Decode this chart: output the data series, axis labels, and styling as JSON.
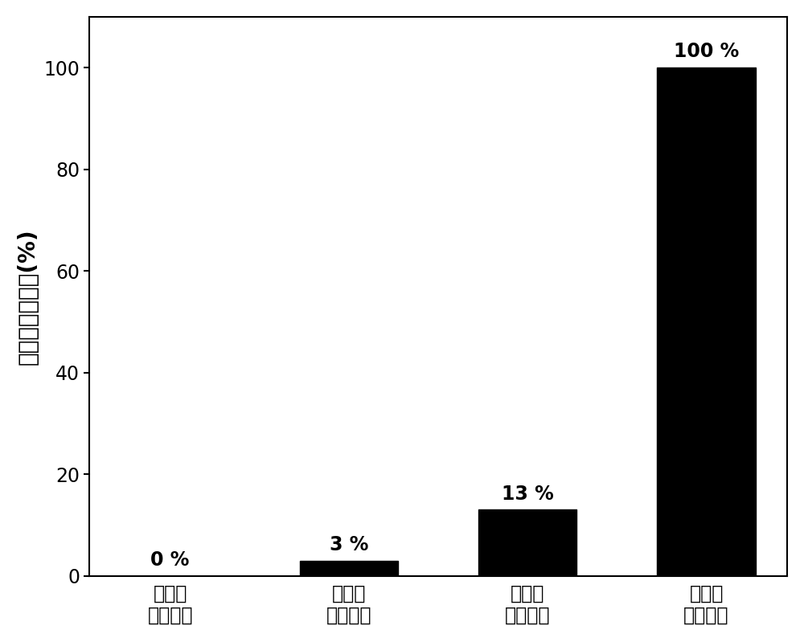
{
  "categories": [
    "无光照\n无抗菌剂",
    "有光照\n无抗菌剂",
    "无光照\n加抗菌剂",
    "有光照\n加抗菌剂"
  ],
  "values": [
    0,
    3,
    13,
    100
  ],
  "bar_color": "#000000",
  "bar_labels": [
    "0 %",
    "3 %",
    "13 %",
    "100 %"
  ],
  "ylabel": "大肠杆菌失活率(%)",
  "ylim": [
    0,
    110
  ],
  "yticks": [
    0,
    20,
    40,
    60,
    80,
    100
  ],
  "label_fontsize": 20,
  "tick_fontsize": 17,
  "bar_label_fontsize": 17,
  "background_color": "#ffffff"
}
